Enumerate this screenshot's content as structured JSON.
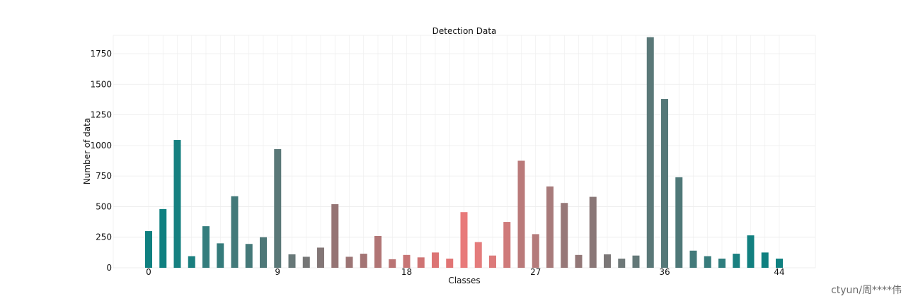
{
  "chart_data": {
    "type": "bar",
    "title": "Detection Data",
    "xlabel": "Classes",
    "ylabel": "Number of data",
    "ylim": [
      0,
      1900
    ],
    "y_ticks": [
      0,
      250,
      500,
      750,
      1000,
      1250,
      1500,
      1750
    ],
    "x_tick_labels": [
      "0",
      "9",
      "18",
      "27",
      "36",
      "44"
    ],
    "x_tick_classes": [
      0,
      9,
      18,
      27,
      36,
      44
    ],
    "grid": true,
    "categories": [
      0,
      1,
      2,
      3,
      4,
      5,
      6,
      7,
      8,
      9,
      10,
      11,
      12,
      13,
      14,
      15,
      16,
      17,
      18,
      19,
      20,
      21,
      22,
      23,
      24,
      25,
      26,
      27,
      28,
      29,
      30,
      31,
      32,
      33,
      34,
      35,
      36,
      37,
      38,
      39,
      40,
      41,
      42,
      43,
      44
    ],
    "values": [
      300,
      480,
      1045,
      95,
      340,
      200,
      585,
      195,
      250,
      970,
      110,
      90,
      165,
      520,
      90,
      115,
      260,
      70,
      105,
      85,
      125,
      75,
      455,
      210,
      100,
      375,
      875,
      275,
      665,
      530,
      105,
      580,
      110,
      75,
      100,
      1885,
      1380,
      740,
      140,
      95,
      75,
      115,
      265,
      125,
      75
    ],
    "colors": [
      "#0f8080",
      "#0f8080",
      "#168080",
      "#1a7f7f",
      "#347d7d",
      "#357b7b",
      "#437a7a",
      "#457979",
      "#4e7878",
      "#5a7878",
      "#677878",
      "#757676",
      "#837676",
      "#957474",
      "#9c7474",
      "#a37474",
      "#b17575",
      "#ba7474",
      "#c77474",
      "#cf7474",
      "#dc7474",
      "#e17474",
      "#e87a7a",
      "#e47c7c",
      "#dc7a7a",
      "#cf7a7a",
      "#ba7a7a",
      "#b47b7b",
      "#a87b7b",
      "#977878",
      "#937777",
      "#8a7777",
      "#7b7777",
      "#6e7878",
      "#637878",
      "#5a7878",
      "#557878",
      "#4f7878",
      "#437a7a",
      "#377b7b",
      "#2e7d7d",
      "#1a8080",
      "#128080",
      "#0f8080",
      "#0f8080"
    ],
    "plot_background": "#ffffff",
    "grid_color": "#ececec"
  },
  "watermark": "ctyun/周****伟"
}
